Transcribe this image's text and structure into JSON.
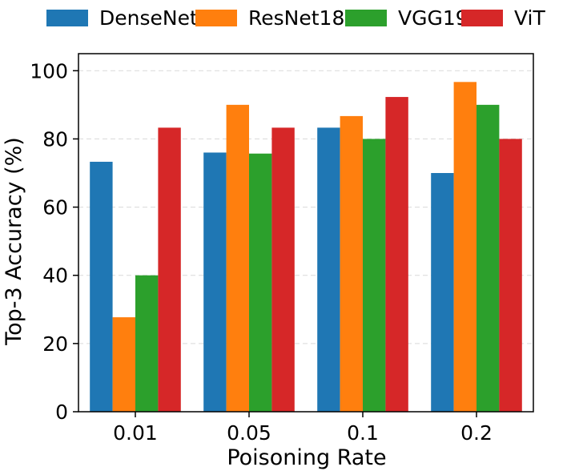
{
  "chart_data": {
    "type": "bar",
    "xlabel": "Poisoning Rate",
    "ylabel": "Top-3 Accuracy (%)",
    "categories": [
      "0.01",
      "0.05",
      "0.1",
      "0.2"
    ],
    "ylim": [
      0,
      105
    ],
    "yticks": [
      0,
      20,
      40,
      60,
      80,
      100
    ],
    "grid": "horizontal dashed",
    "legend_position": "top",
    "series": [
      {
        "name": "DenseNet",
        "color": "#1f77b4",
        "values": [
          73.3,
          76.0,
          83.3,
          70.0
        ]
      },
      {
        "name": "ResNet18",
        "color": "#ff7f0e",
        "values": [
          27.7,
          90.0,
          86.7,
          96.7
        ]
      },
      {
        "name": "VGG19",
        "color": "#2ca02c",
        "values": [
          40.0,
          75.7,
          80.0,
          90.0
        ]
      },
      {
        "name": "ViT",
        "color": "#d62728",
        "values": [
          83.3,
          83.3,
          92.3,
          80.0
        ]
      }
    ]
  }
}
